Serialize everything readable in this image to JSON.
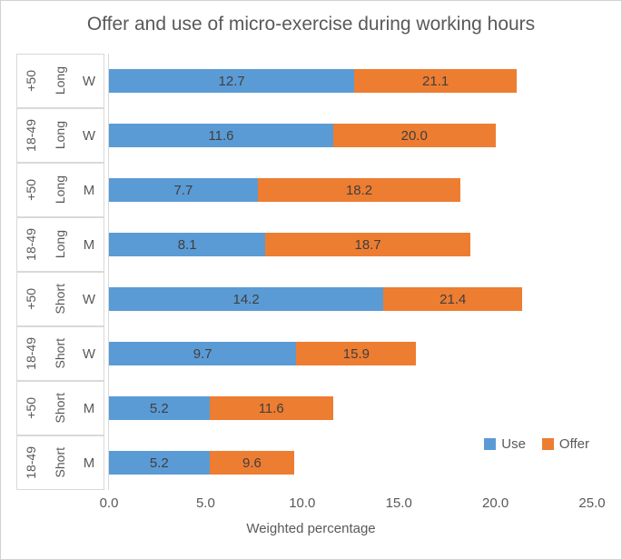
{
  "chart_data": {
    "type": "bar",
    "orientation": "horizontal",
    "stacked": true,
    "offer_is_cumulative": true,
    "title": "Offer and use of micro-exercise during working hours",
    "xlabel": "Weighted percentage",
    "xlim": [
      0,
      25
    ],
    "xticks": [
      0,
      5,
      10,
      15,
      20,
      25
    ],
    "xtick_labels": [
      "0.0",
      "5.0",
      "10.0",
      "15.0",
      "20.0",
      "25.0"
    ],
    "grid": false,
    "legend_position": "inside-bottom-right",
    "categories": [
      {
        "age": "+50",
        "duration": "Long",
        "gender": "W"
      },
      {
        "age": "18-49",
        "duration": "Long",
        "gender": "W"
      },
      {
        "age": "+50",
        "duration": "Long",
        "gender": "M"
      },
      {
        "age": "18-49",
        "duration": "Long",
        "gender": "M"
      },
      {
        "age": "+50",
        "duration": "Short",
        "gender": "W"
      },
      {
        "age": "18-49",
        "duration": "Short",
        "gender": "W"
      },
      {
        "age": "+50",
        "duration": "Short",
        "gender": "M"
      },
      {
        "age": "18-49",
        "duration": "Short",
        "gender": "M"
      }
    ],
    "series": [
      {
        "name": "Use",
        "color": "#5B9BD5",
        "values": [
          12.7,
          11.6,
          7.7,
          8.1,
          14.2,
          9.7,
          5.2,
          5.2
        ]
      },
      {
        "name": "Offer",
        "color": "#ED7D31",
        "values": [
          21.1,
          20.0,
          18.2,
          18.7,
          21.4,
          15.9,
          11.6,
          9.6
        ]
      }
    ]
  },
  "colors": {
    "use_fill": "#5B9BD5",
    "offer_fill": "#ED7D31",
    "axis_text": "#595959",
    "value_text": "#3F3F3F",
    "cell_border": "#D9D9D9",
    "figure_border": "#D2D2D2"
  }
}
